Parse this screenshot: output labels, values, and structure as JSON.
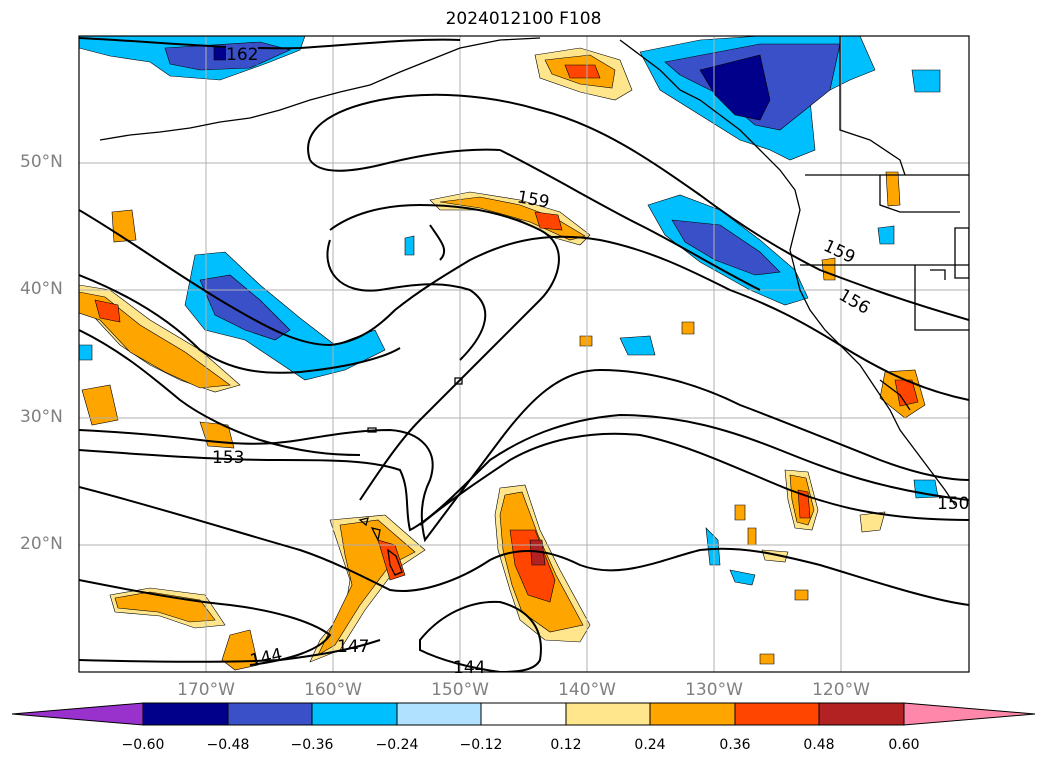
{
  "title": "2024012100 F108",
  "latitude_labels": [
    "50°N",
    "40°N",
    "30°N",
    "20°N"
  ],
  "longitude_labels": [
    "170°W",
    "160°W",
    "150°W",
    "140°W",
    "130°W",
    "120°W"
  ],
  "colorbar": {
    "tick_labels": [
      "−0.60",
      "−0.48",
      "−0.36",
      "−0.24",
      "−0.12",
      "0.12",
      "0.24",
      "0.36",
      "0.48",
      "0.60"
    ],
    "colors": [
      "#9932cc",
      "#00008b",
      "#3a50c8",
      "#00bfff",
      "#b0e2ff",
      "#ffffff",
      "#ffe68c",
      "#ffa500",
      "#ff4500",
      "#b22222",
      "#ff88aa"
    ]
  },
  "contour_labels": [
    "162",
    "159",
    "159",
    "156",
    "153",
    "150",
    "147",
    "144",
    "144"
  ],
  "map": {
    "lon_range": [
      -180,
      -110
    ],
    "lat_range": [
      10,
      60
    ],
    "gridlines": true,
    "fields": [
      "shaded anomaly",
      "black height contours",
      "coastlines"
    ]
  }
}
